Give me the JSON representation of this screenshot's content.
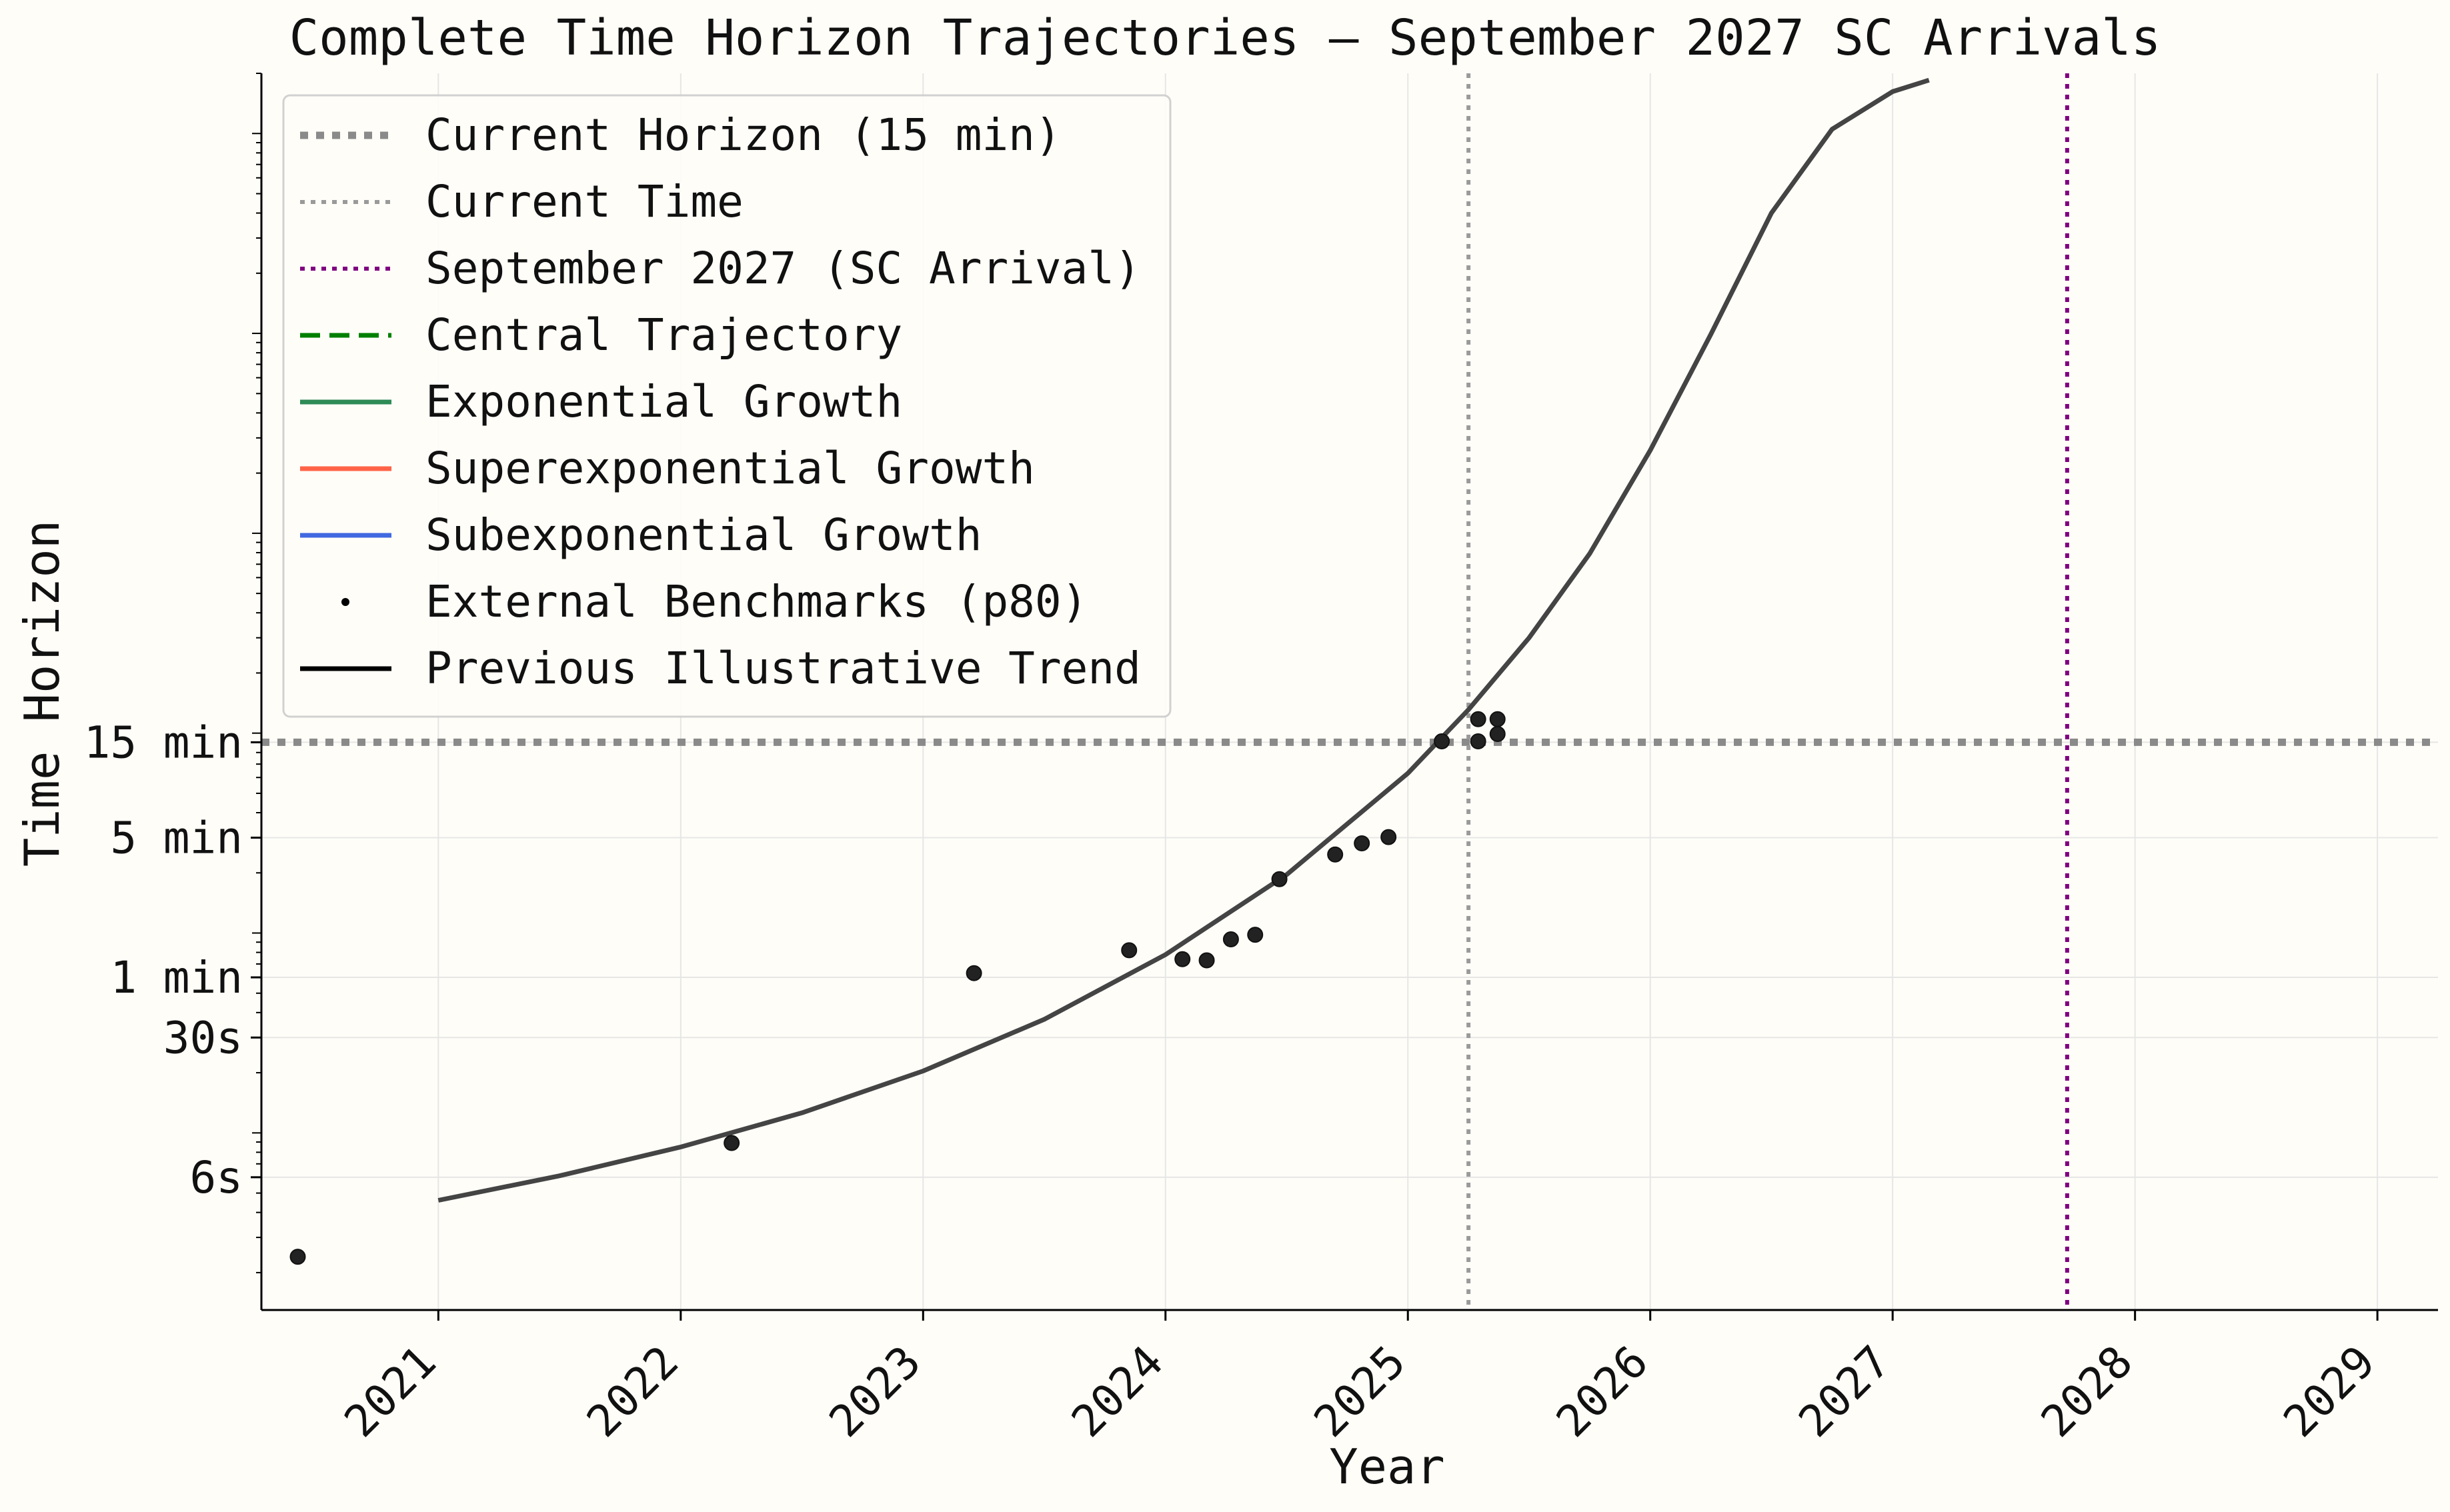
{
  "chart_data": {
    "type": "line",
    "title": "Complete Time Horizon Trajectories — September 2027 SC Arrivals",
    "xlabel": "Year",
    "ylabel": "Time Horizon",
    "x_scale": "linear",
    "y_scale": "log",
    "xlim": [
      2020.27,
      2029.25
    ],
    "ylim_seconds": [
      1.3,
      2000000
    ],
    "x_ticks": [
      {
        "value": 2021,
        "label": "2021"
      },
      {
        "value": 2022,
        "label": "2022"
      },
      {
        "value": 2023,
        "label": "2023"
      },
      {
        "value": 2024,
        "label": "2024"
      },
      {
        "value": 2025,
        "label": "2025"
      },
      {
        "value": 2026,
        "label": "2026"
      },
      {
        "value": 2027,
        "label": "2027"
      },
      {
        "value": 2028,
        "label": "2028"
      },
      {
        "value": 2029,
        "label": "2029"
      }
    ],
    "y_ticks": [
      {
        "value_seconds": 6,
        "label": "6s"
      },
      {
        "value_seconds": 30,
        "label": "30s"
      },
      {
        "value_seconds": 60,
        "label": "1 min"
      },
      {
        "value_seconds": 300,
        "label": "5 min"
      },
      {
        "value_seconds": 900,
        "label": "15 min"
      }
    ],
    "grid": true,
    "legend_position": "top-left",
    "reference_lines": [
      {
        "orientation": "horizontal",
        "value_seconds": 900,
        "label": "Current Horizon (15 min)",
        "color": "#8a8a8a",
        "style": "dotted-thick"
      },
      {
        "orientation": "vertical",
        "value_year": 2025.25,
        "label": "Current Time",
        "color": "#9a9a9a",
        "style": "dotted"
      },
      {
        "orientation": "vertical",
        "value_year": 2027.72,
        "label": "September 2027 (SC Arrival)",
        "color": "#800080",
        "style": "dotted"
      }
    ],
    "series": [
      {
        "name": "Central Trajectory",
        "color": "#008000",
        "style": "dashed",
        "x": [],
        "y_seconds": []
      },
      {
        "name": "Exponential Growth",
        "color": "#2e8b57",
        "style": "solid",
        "x": [],
        "y_seconds": []
      },
      {
        "name": "Superexponential Growth",
        "color": "#ff6347",
        "style": "solid",
        "x": [],
        "y_seconds": []
      },
      {
        "name": "Subexponential Growth",
        "color": "#4169e1",
        "style": "solid",
        "x": [],
        "y_seconds": []
      },
      {
        "name": "Previous Illustrative Trend",
        "color": "#444444",
        "style": "solid",
        "x": [
          2021.0,
          2021.5,
          2022.0,
          2022.5,
          2023.0,
          2023.5,
          2024.0,
          2024.5,
          2025.0,
          2025.25,
          2025.5,
          2025.75,
          2026.0,
          2026.25,
          2026.5,
          2026.75,
          2027.0,
          2027.15
        ],
        "y_seconds": [
          4.6,
          6.1,
          8.5,
          12.6,
          20.4,
          37,
          78,
          196,
          630,
          1310,
          3000,
          7900,
          26000,
          99000,
          400000,
          1050000,
          1620000,
          1850000
        ]
      },
      {
        "name": "External Benchmarks (p80)",
        "type": "scatter",
        "color": "#222222",
        "x": [
          2020.42,
          2022.21,
          2023.21,
          2023.85,
          2024.07,
          2024.17,
          2024.27,
          2024.37,
          2024.47,
          2024.7,
          2024.81,
          2024.92,
          2025.14,
          2025.29,
          2025.29,
          2025.37,
          2025.37
        ],
        "y_seconds": [
          2.4,
          8.9,
          63,
          82,
          74,
          73,
          93,
          98,
          186,
          247,
          281,
          302,
          910,
          1175,
          910,
          1175,
          990
        ]
      }
    ],
    "legend": [
      "Current Horizon (15 min)",
      "Current Time",
      "September 2027 (SC Arrival)",
      "Central Trajectory",
      "Exponential Growth",
      "Superexponential Growth",
      "Subexponential Growth",
      "External Benchmarks (p80)",
      "Previous Illustrative Trend"
    ]
  }
}
